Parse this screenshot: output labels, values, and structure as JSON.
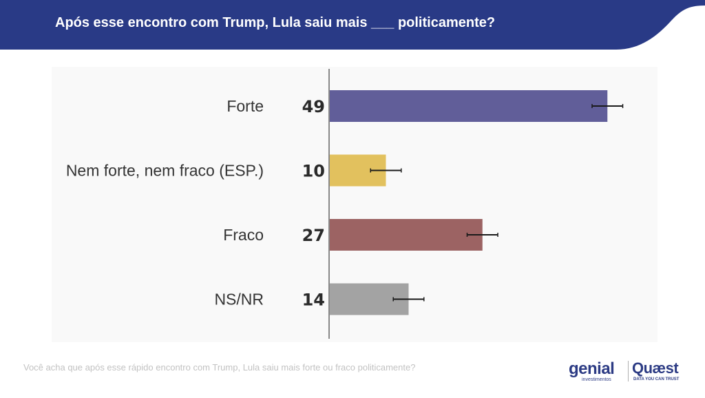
{
  "header": {
    "title": "Após esse encontro com Trump, Lula saiu mais ___ politicamente?"
  },
  "chart_data": {
    "type": "bar",
    "orientation": "horizontal",
    "categories": [
      "Forte",
      "Nem forte, nem fraco (ESP.)",
      "Fraco",
      "NS/NR"
    ],
    "values": [
      49,
      10,
      27,
      14
    ],
    "colors": [
      "#615e99",
      "#e2c15e",
      "#9c6363",
      "#a3a3a3"
    ],
    "error_bars": true,
    "title": "",
    "xlabel": "",
    "ylabel": "",
    "xlim": [
      0,
      60
    ]
  },
  "footer": {
    "question": "Você acha que após esse rápido encontro com Trump, Lula saiu mais forte ou fraco politicamente?"
  },
  "logos": {
    "genial": "genial",
    "genial_sub": "investimentos",
    "quaest": "Quæst",
    "quaest_sub": "DATA YOU CAN TRUST"
  },
  "colors": {
    "header_bg": "#293a86",
    "axis": "#888888"
  }
}
